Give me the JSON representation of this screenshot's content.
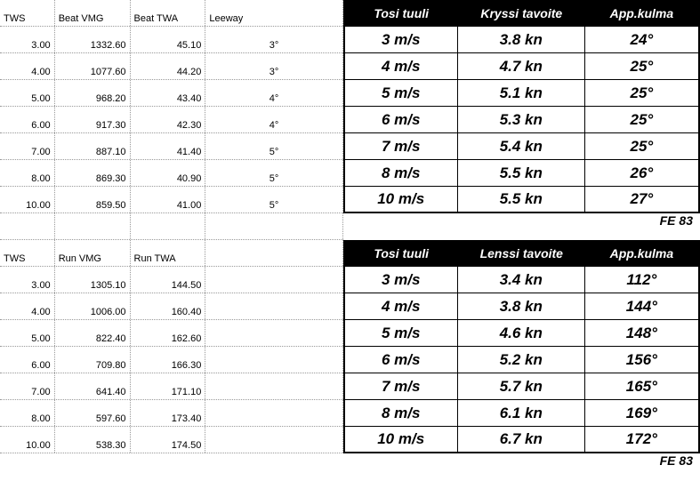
{
  "boat_label": "FE 83",
  "upper": {
    "left": {
      "headers": [
        "TWS",
        "Beat VMG",
        "Beat TWA",
        "Leeway"
      ],
      "rows": [
        {
          "tws": "3.00",
          "vmg": "1332.60",
          "twa": "45.10",
          "lee": "3°"
        },
        {
          "tws": "4.00",
          "vmg": "1077.60",
          "twa": "44.20",
          "lee": "3°"
        },
        {
          "tws": "5.00",
          "vmg": "968.20",
          "twa": "43.40",
          "lee": "4°"
        },
        {
          "tws": "6.00",
          "vmg": "917.30",
          "twa": "42.30",
          "lee": "4°"
        },
        {
          "tws": "7.00",
          "vmg": "887.10",
          "twa": "41.40",
          "lee": "5°"
        },
        {
          "tws": "8.00",
          "vmg": "869.30",
          "twa": "40.90",
          "lee": "5°"
        },
        {
          "tws": "10.00",
          "vmg": "859.50",
          "twa": "41.00",
          "lee": "5°"
        }
      ]
    },
    "right": {
      "headers": [
        "Tosi tuuli",
        "Kryssi tavoite",
        "App.kulma"
      ],
      "rows": [
        {
          "w": "3 m/s",
          "t": "3.8 kn",
          "a": "24°"
        },
        {
          "w": "4 m/s",
          "t": "4.7 kn",
          "a": "25°"
        },
        {
          "w": "5 m/s",
          "t": "5.1 kn",
          "a": "25°"
        },
        {
          "w": "6 m/s",
          "t": "5.3 kn",
          "a": "25°"
        },
        {
          "w": "7 m/s",
          "t": "5.4 kn",
          "a": "25°"
        },
        {
          "w": "8 m/s",
          "t": "5.5 kn",
          "a": "26°"
        },
        {
          "w": "10 m/s",
          "t": "5.5 kn",
          "a": "27°"
        }
      ]
    }
  },
  "lower": {
    "left": {
      "headers": [
        "TWS",
        "Run VMG",
        "Run TWA",
        ""
      ],
      "rows": [
        {
          "tws": "3.00",
          "vmg": "1305.10",
          "twa": "144.50",
          "lee": ""
        },
        {
          "tws": "4.00",
          "vmg": "1006.00",
          "twa": "160.40",
          "lee": ""
        },
        {
          "tws": "5.00",
          "vmg": "822.40",
          "twa": "162.60",
          "lee": ""
        },
        {
          "tws": "6.00",
          "vmg": "709.80",
          "twa": "166.30",
          "lee": ""
        },
        {
          "tws": "7.00",
          "vmg": "641.40",
          "twa": "171.10",
          "lee": ""
        },
        {
          "tws": "8.00",
          "vmg": "597.60",
          "twa": "173.40",
          "lee": ""
        },
        {
          "tws": "10.00",
          "vmg": "538.30",
          "twa": "174.50",
          "lee": ""
        }
      ]
    },
    "right": {
      "headers": [
        "Tosi tuuli",
        "Lenssi tavoite",
        "App.kulma"
      ],
      "rows": [
        {
          "w": "3 m/s",
          "t": "3.4 kn",
          "a": "112°"
        },
        {
          "w": "4 m/s",
          "t": "3.8 kn",
          "a": "144°"
        },
        {
          "w": "5 m/s",
          "t": "4.6 kn",
          "a": "148°"
        },
        {
          "w": "6 m/s",
          "t": "5.2 kn",
          "a": "156°"
        },
        {
          "w": "7 m/s",
          "t": "5.7 kn",
          "a": "165°"
        },
        {
          "w": "8 m/s",
          "t": "6.1 kn",
          "a": "169°"
        },
        {
          "w": "10 m/s",
          "t": "6.7 kn",
          "a": "172°"
        }
      ]
    }
  }
}
